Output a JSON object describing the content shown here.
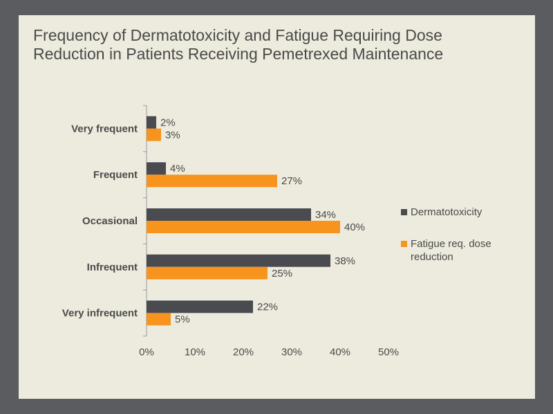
{
  "slide": {
    "title_lines": [
      "Frequency of Dermatotoxicity and Fatigue Requiring Dose",
      "Reduction in Patients Receiving Pemetrexed Maintenance"
    ]
  },
  "colors": {
    "background": "#5b5c60",
    "slide": "#ecebdd",
    "series_dermatotoxicity": "#4a4b50",
    "series_fatigue": "#f7941d",
    "axis": "#9a9a9a",
    "text": "#4a4a4a"
  },
  "chart_data": {
    "type": "bar",
    "orientation": "horizontal",
    "title": "Frequency of Dermatotoxicity and Fatigue Requiring Dose Reduction in Patients Receiving Pemetrexed Maintenance",
    "categories": [
      "Very frequent",
      "Frequent",
      "Occasional",
      "Infrequent",
      "Very infrequent"
    ],
    "series": [
      {
        "name": "Dermatotoxicity",
        "color": "#4a4b50",
        "values": [
          2,
          4,
          34,
          38,
          22
        ],
        "labels": [
          "2%",
          "4%",
          "34%",
          "38%",
          "22%"
        ]
      },
      {
        "name": "Fatigue req. dose reduction",
        "color": "#f7941d",
        "values": [
          3,
          27,
          40,
          25,
          5
        ],
        "labels": [
          "3%",
          "27%",
          "40%",
          "25%",
          "5%"
        ]
      }
    ],
    "xlim": [
      0,
      50
    ],
    "xticks": [
      0,
      10,
      20,
      30,
      40,
      50
    ],
    "xtick_labels": [
      "0%",
      "10%",
      "20%",
      "30%",
      "40%",
      "50%"
    ],
    "grid": false,
    "legend_position": "right"
  },
  "legend": {
    "items": [
      {
        "label": "Dermatotoxicity",
        "color": "#4a4b50"
      },
      {
        "label": "Fatigue req. dose reduction",
        "color": "#f7941d"
      }
    ]
  }
}
